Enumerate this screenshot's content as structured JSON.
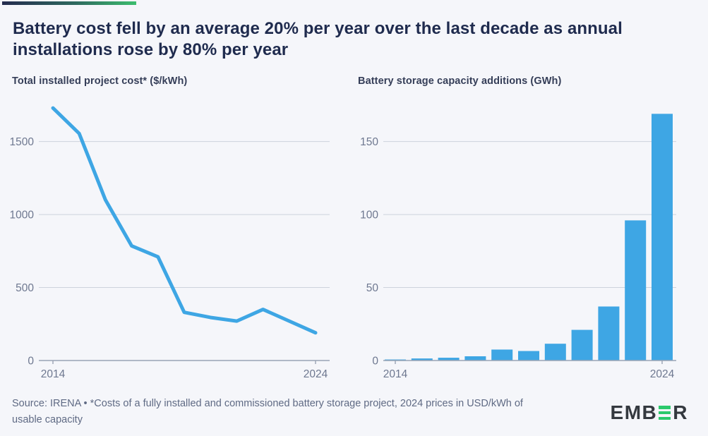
{
  "header": {
    "title_line1": "Battery cost fell by an average 20% per year over the last decade as annual",
    "title_line2": "installations rose by 80% per year"
  },
  "colors": {
    "background": "#f5f6fa",
    "accent_gradient_start": "#242b4e",
    "accent_gradient_end": "#3cbd6e",
    "chart_blue": "#3ea6e4",
    "gridline": "#cdd2dc",
    "axis_line": "#9aa3b4",
    "tick_label": "#6e7890",
    "title_navy": "#1f2b4e",
    "logo_green": "#2bc96c",
    "logo_dark": "#34393f"
  },
  "chart_data": [
    {
      "type": "line",
      "title": "Total installed project cost* ($/kWh)",
      "x": [
        2014,
        2015,
        2016,
        2017,
        2018,
        2019,
        2020,
        2021,
        2022,
        2023,
        2024
      ],
      "values": [
        1730,
        1555,
        1100,
        785,
        710,
        330,
        295,
        270,
        350,
        270,
        190
      ],
      "yticks": [
        0,
        500,
        1000,
        1500
      ],
      "ylim": [
        0,
        1770
      ],
      "xticklabels": [
        "2014",
        "2024"
      ],
      "grid": true,
      "legend": "none",
      "line_color": "#3ea6e4"
    },
    {
      "type": "bar",
      "title": "Battery storage capacity additions (GWh)",
      "x": [
        2014,
        2015,
        2016,
        2017,
        2018,
        2019,
        2020,
        2021,
        2022,
        2023,
        2024
      ],
      "values": [
        0.7,
        1.4,
        1.9,
        2.9,
        7.5,
        6.5,
        11.5,
        21,
        37,
        96,
        169
      ],
      "yticks": [
        0,
        50,
        100,
        150
      ],
      "ylim": [
        0,
        177
      ],
      "xticklabels": [
        "2014",
        "2024"
      ],
      "grid": true,
      "legend": "none",
      "bar_color": "#3ea6e4"
    }
  ],
  "footer": {
    "source_line1": "Source: IRENA • *Costs of a fully installed and commissioned battery storage project, 2024 prices in USD/kWh of",
    "source_line2": "usable capacity",
    "logo_left": "EMB",
    "logo_right": "R",
    "logo_name": "EMBER"
  }
}
